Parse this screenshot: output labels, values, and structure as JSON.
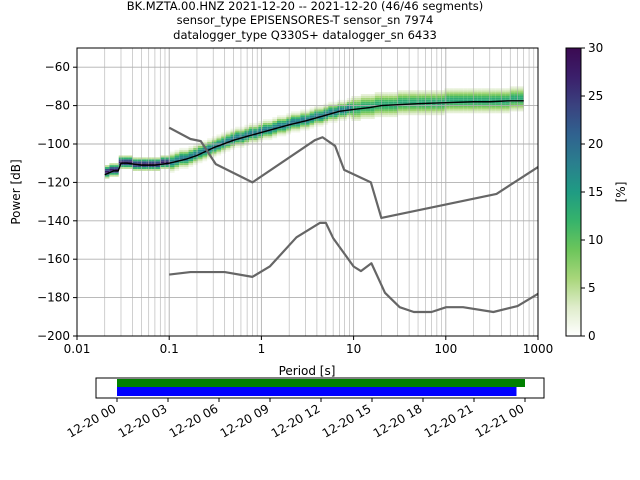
{
  "title_lines": [
    "BK.MZTA.00.HNZ   2021-12-20 -- 2021-12-20  (46/46 segments)",
    "sensor_type EPISENSORES-T sensor_sn 7974",
    "datalogger_type Q330S+ datalogger_sn 6433"
  ],
  "chart_data": [
    {
      "type": "heatmap",
      "xlabel": "Period [s]",
      "ylabel": "Power [dB]",
      "xscale": "log",
      "xlim": [
        0.01,
        1000
      ],
      "ylim": [
        -200,
        -50
      ],
      "xticks": [
        0.01,
        0.1,
        1,
        10,
        100,
        1000
      ],
      "xtick_labels": [
        "0.01",
        "0.1",
        "1",
        "10",
        "100",
        "1000"
      ],
      "yticks": [
        -200,
        -180,
        -160,
        -140,
        -120,
        -100,
        -80,
        -60
      ],
      "ytick_labels": [
        "−200",
        "−180",
        "−160",
        "−140",
        "−120",
        "−100",
        "−80",
        "−60"
      ],
      "grid": true,
      "colorbar": {
        "label": "[%]",
        "range": [
          0,
          30
        ],
        "ticks": [
          0,
          5,
          10,
          15,
          20,
          25,
          30
        ],
        "tick_labels": [
          "0",
          "5",
          "10",
          "15",
          "20",
          "25",
          "30"
        ],
        "colormap": [
          "#ffffff",
          "#dfeccb",
          "#a8d67a",
          "#6cc55b",
          "#36b36b",
          "#1f9b83",
          "#2a7f8e",
          "#30628f",
          "#3a427f",
          "#3b1f6b",
          "#3b0a52"
        ]
      },
      "series": [
        {
          "role": "mean",
          "color": "#000000",
          "x": [
            0.02,
            0.025,
            0.028,
            0.03,
            0.035,
            0.05,
            0.07,
            0.1,
            0.15,
            0.2,
            0.3,
            0.5,
            0.7,
            1,
            2,
            3,
            5,
            7,
            10,
            15,
            20,
            30,
            50,
            100,
            200,
            300,
            500,
            700
          ],
          "y": [
            -116,
            -114,
            -114,
            -110,
            -110,
            -111,
            -111,
            -110,
            -108,
            -106,
            -102,
            -98,
            -96,
            -94,
            -90,
            -88,
            -85,
            -83,
            -82,
            -81,
            -80,
            -79.5,
            -79,
            -78.5,
            -78,
            -78,
            -77.5,
            -77.5
          ]
        },
        {
          "role": "NHNM",
          "color": "#666666",
          "x": [
            0.1,
            0.17,
            0.22,
            0.32,
            0.8,
            3.8,
            4.6,
            6.3,
            7.9,
            15.4,
            20,
            354.8,
            1000
          ],
          "y": [
            -91.5,
            -97.4,
            -98.5,
            -110.5,
            -120,
            -98,
            -96.5,
            -101,
            -113.5,
            -120,
            -138.5,
            -126,
            -112
          ]
        },
        {
          "role": "NLNM",
          "color": "#666666",
          "x": [
            0.1,
            0.17,
            0.4,
            0.8,
            1.24,
            2.4,
            4.3,
            5,
            6,
            10,
            12,
            15.6,
            21.9,
            31.6,
            45,
            70,
            101,
            154,
            328,
            600,
            1000
          ],
          "y": [
            -168,
            -166.7,
            -166.7,
            -169.2,
            -163.7,
            -148.6,
            -141.1,
            -141.1,
            -149,
            -163.8,
            -166.2,
            -162.1,
            -177.5,
            -185,
            -187.5,
            -187.5,
            -185,
            -185,
            -187.5,
            -184.4,
            -178
          ]
        }
      ]
    },
    {
      "type": "bar",
      "xlim": [
        "12-20 00",
        "12-21 00"
      ],
      "xtick_labels": [
        "12-20 00",
        "12-20 03",
        "12-20 06",
        "12-20 09",
        "12-20 12",
        "12-20 15",
        "12-20 18",
        "12-20 21",
        "12-21 00"
      ],
      "series": [
        {
          "role": "data-available",
          "color": "#008000",
          "start_hours": 0,
          "end_hours": 24.0
        },
        {
          "role": "psd-used",
          "color": "#0000ff",
          "start_hours": 0,
          "end_hours": 23.5
        }
      ]
    }
  ]
}
